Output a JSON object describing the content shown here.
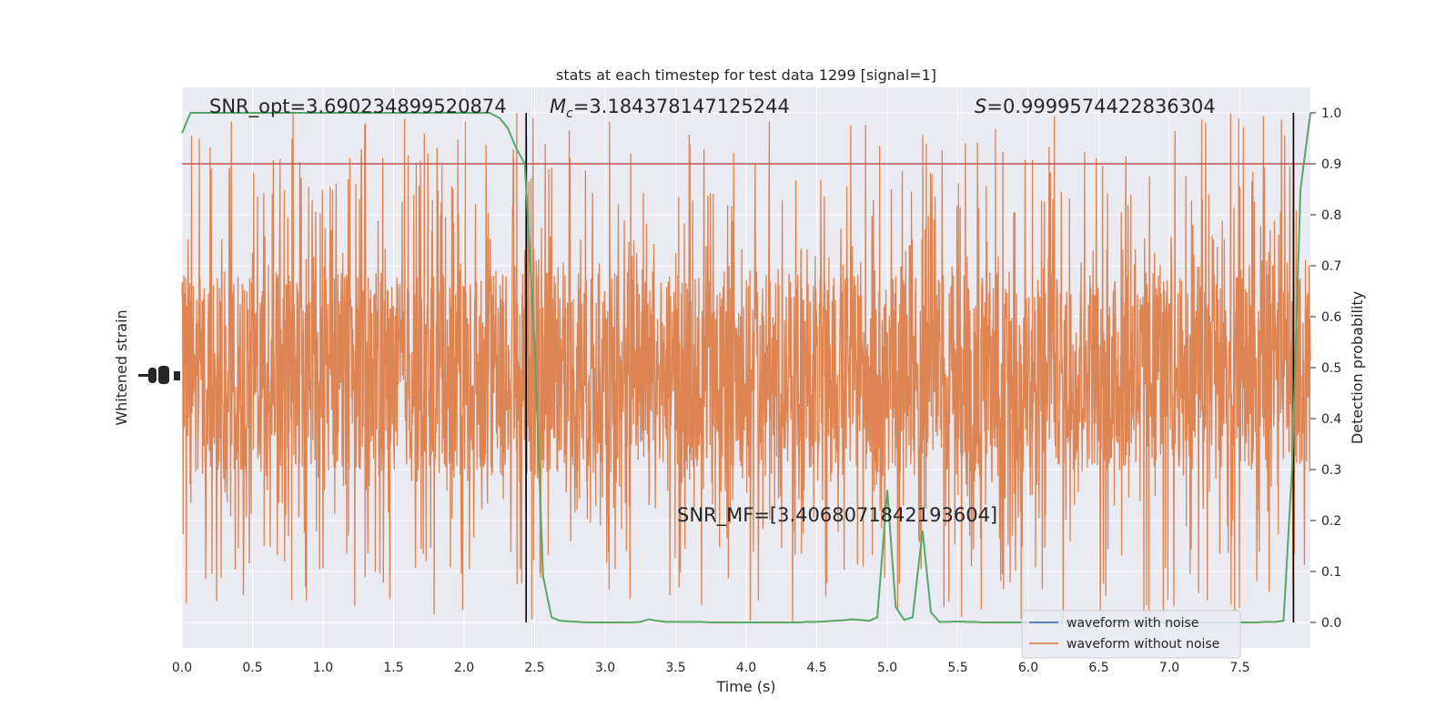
{
  "chart_data": {
    "type": "line",
    "title": "stats at each timestep for test data 1299 [signal=1]",
    "xlabel": "Time (s)",
    "ylabel_left": "Whitened strain",
    "ylabel_right": "Detection probability",
    "xlim": [
      0,
      8
    ],
    "ylim_right": [
      -0.05,
      1.05
    ],
    "x_ticks": [
      "0.0",
      "0.5",
      "1.0",
      "1.5",
      "2.0",
      "2.5",
      "3.0",
      "3.5",
      "4.0",
      "4.5",
      "5.0",
      "5.5",
      "6.0",
      "6.5",
      "7.0",
      "7.5"
    ],
    "y_right_ticks": [
      "0.0",
      "0.1",
      "0.2",
      "0.3",
      "0.4",
      "0.5",
      "0.6",
      "0.7",
      "0.8",
      "0.9",
      "1.0"
    ],
    "grid": true,
    "annotations": {
      "snr_opt": "SNR_opt=3.690234899520874",
      "mc_symbol": "M",
      "mc_sub": "c",
      "mc_value": "=3.184378147125244",
      "s_symbol": "S",
      "s_value": "=0.9999574422836304",
      "snr_mf": "SNR_MF=[3.4068071842193604]"
    },
    "threshold": {
      "value": 0.9,
      "color": "#c44e52"
    },
    "vertical_lines": {
      "x": [
        2.44,
        7.88
      ],
      "color": "#000000"
    },
    "legend": {
      "placement": "lower-right",
      "entries": [
        {
          "label": "waveform with noise",
          "color": "#4c72b0"
        },
        {
          "label": "waveform without noise",
          "color": "#dd8452"
        }
      ]
    },
    "series": [
      {
        "name": "Detection probability",
        "color": "#55a868",
        "x": [
          0,
          0.06,
          0.12,
          0.18,
          0.25,
          0.31,
          0.37,
          0.43,
          0.5,
          0.56,
          0.62,
          0.68,
          0.75,
          0.81,
          0.87,
          0.93,
          1,
          1.06,
          1.12,
          1.18,
          1.25,
          1.31,
          1.37,
          1.43,
          1.5,
          1.56,
          1.62,
          1.68,
          1.75,
          1.81,
          1.87,
          1.93,
          2,
          2.06,
          2.12,
          2.18,
          2.25,
          2.31,
          2.37,
          2.43,
          2.5,
          2.56,
          2.62,
          2.68,
          2.75,
          2.81,
          2.87,
          2.93,
          3,
          3.06,
          3.12,
          3.18,
          3.25,
          3.31,
          3.37,
          3.43,
          3.5,
          3.56,
          3.62,
          3.68,
          3.75,
          3.81,
          3.87,
          3.93,
          4,
          4.06,
          4.12,
          4.18,
          4.25,
          4.31,
          4.37,
          4.43,
          4.5,
          4.56,
          4.62,
          4.68,
          4.75,
          4.81,
          4.87,
          4.93,
          5,
          5.06,
          5.12,
          5.18,
          5.25,
          5.31,
          5.37,
          5.43,
          5.5,
          5.56,
          5.62,
          5.68,
          5.75,
          5.81,
          5.87,
          5.93,
          6,
          6.06,
          6.12,
          6.18,
          6.25,
          6.31,
          6.37,
          6.43,
          6.5,
          6.56,
          6.62,
          6.68,
          6.75,
          6.81,
          6.87,
          6.93,
          7,
          7.06,
          7.12,
          7.18,
          7.25,
          7.31,
          7.37,
          7.43,
          7.5,
          7.56,
          7.62,
          7.68,
          7.75,
          7.81,
          7.87,
          7.93,
          8
        ],
        "y": [
          0.96,
          1.0,
          1.0,
          1.0,
          1.0,
          1.0,
          1.0,
          1.0,
          1.0,
          1.0,
          1.0,
          1.0,
          1.0,
          1.0,
          1.0,
          1.0,
          1.0,
          1.0,
          1.0,
          1.0,
          1.0,
          1.0,
          1.0,
          1.0,
          1.0,
          1.0,
          1.0,
          1.0,
          1.0,
          1.0,
          1.0,
          1.0,
          1.0,
          1.0,
          1.0,
          1.0,
          0.99,
          0.97,
          0.93,
          0.9,
          0.55,
          0.09,
          0.01,
          0.003,
          0.002,
          0.001,
          0.0,
          0.0,
          0.0,
          0.0,
          0.0,
          0.0,
          0.001,
          0.006,
          0.003,
          0.001,
          0.001,
          0.001,
          0.001,
          0.001,
          0.0,
          0.0,
          0.0,
          0.0,
          0.0,
          0.0,
          0.0,
          0.0,
          0.0,
          0.0,
          0.0,
          0.001,
          0.001,
          0.002,
          0.003,
          0.004,
          0.006,
          0.005,
          0.003,
          0.01,
          0.26,
          0.03,
          0.005,
          0.01,
          0.18,
          0.02,
          0.001,
          0.001,
          0.002,
          0.001,
          0.001,
          0.0,
          0.0,
          0.0,
          0.0,
          0.0,
          0.0,
          0.0,
          0.0,
          0.001,
          0.001,
          0.002,
          0.002,
          0.001,
          0.001,
          0.001,
          0.0,
          0.0,
          0.0,
          0.0,
          0.0,
          0.0,
          0.0,
          0.0,
          0.0,
          0.0,
          0.0,
          0.0,
          0.0,
          0.0,
          0.0,
          0.0,
          0.0,
          0.001,
          0.001,
          0.003,
          0.3,
          0.85,
          1.0
        ]
      },
      {
        "name": "waveform without noise",
        "color": "#dd8452",
        "note_type": "dense-noise",
        "x_range": [
          0,
          8
        ],
        "y_band": {
          "core_low": 0.3,
          "core_high": 0.68,
          "min": 0.0,
          "max": 1.0
        }
      }
    ]
  }
}
